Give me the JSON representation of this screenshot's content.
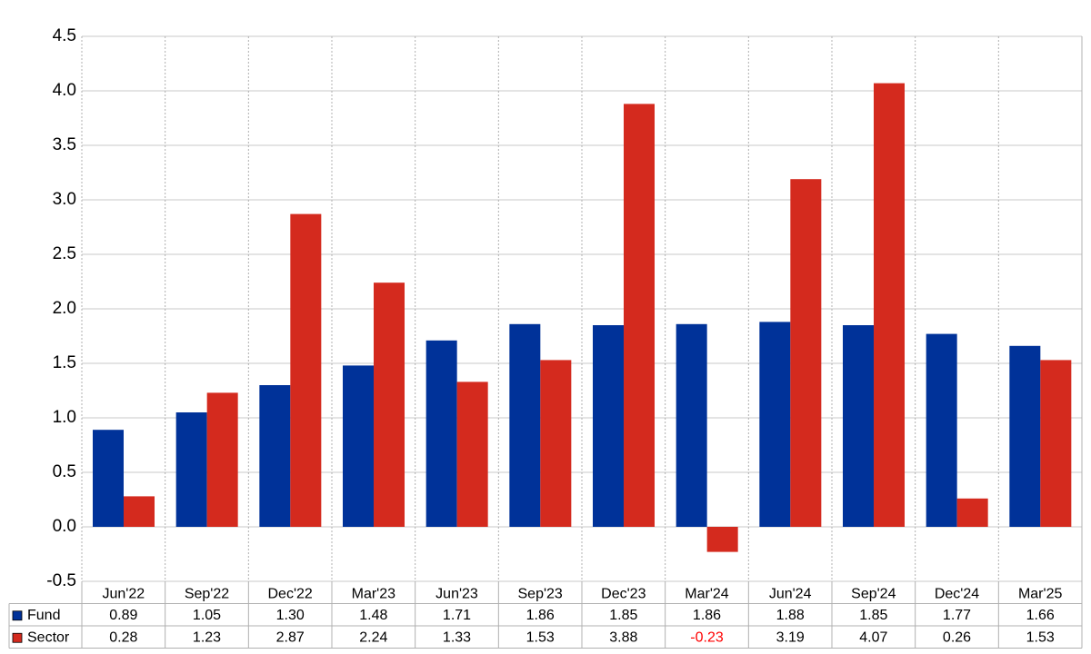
{
  "chart_data": {
    "type": "bar",
    "categories": [
      "Jun'22",
      "Sep'22",
      "Dec'22",
      "Mar'23",
      "Jun'23",
      "Sep'23",
      "Dec'23",
      "Mar'24",
      "Jun'24",
      "Sep'24",
      "Dec'24",
      "Mar'25"
    ],
    "series": [
      {
        "name": "Fund",
        "color": "#003299",
        "values": [
          0.89,
          1.05,
          1.3,
          1.48,
          1.71,
          1.86,
          1.85,
          1.86,
          1.88,
          1.85,
          1.77,
          1.66
        ],
        "value_labels": [
          "0.89",
          "1.05",
          "1.30",
          "1.48",
          "1.71",
          "1.86",
          "1.85",
          "1.86",
          "1.88",
          "1.85",
          "1.77",
          "1.66"
        ]
      },
      {
        "name": "Sector",
        "color": "#d42a1e",
        "values": [
          0.28,
          1.23,
          2.87,
          2.24,
          1.33,
          1.53,
          3.88,
          -0.23,
          3.19,
          4.07,
          0.26,
          1.53
        ],
        "value_labels": [
          "0.28",
          "1.23",
          "2.87",
          "2.24",
          "1.33",
          "1.53",
          "3.88",
          "-0.23",
          "3.19",
          "4.07",
          "0.26",
          "1.53"
        ]
      }
    ],
    "ylim": [
      -0.5,
      4.5
    ],
    "yticks": [
      -0.5,
      {
        "value": 0,
        "label": "0.0"
      },
      0.5,
      {
        "value": 1,
        "label": "1.0"
      },
      1.5,
      {
        "value": 2,
        "label": "2.0"
      },
      2.5,
      {
        "value": 3,
        "label": "3.0"
      },
      3.5,
      {
        "value": 4,
        "label": "4.0"
      },
      4.5
    ],
    "grid": true,
    "negative_label_color": "#ff0000"
  }
}
